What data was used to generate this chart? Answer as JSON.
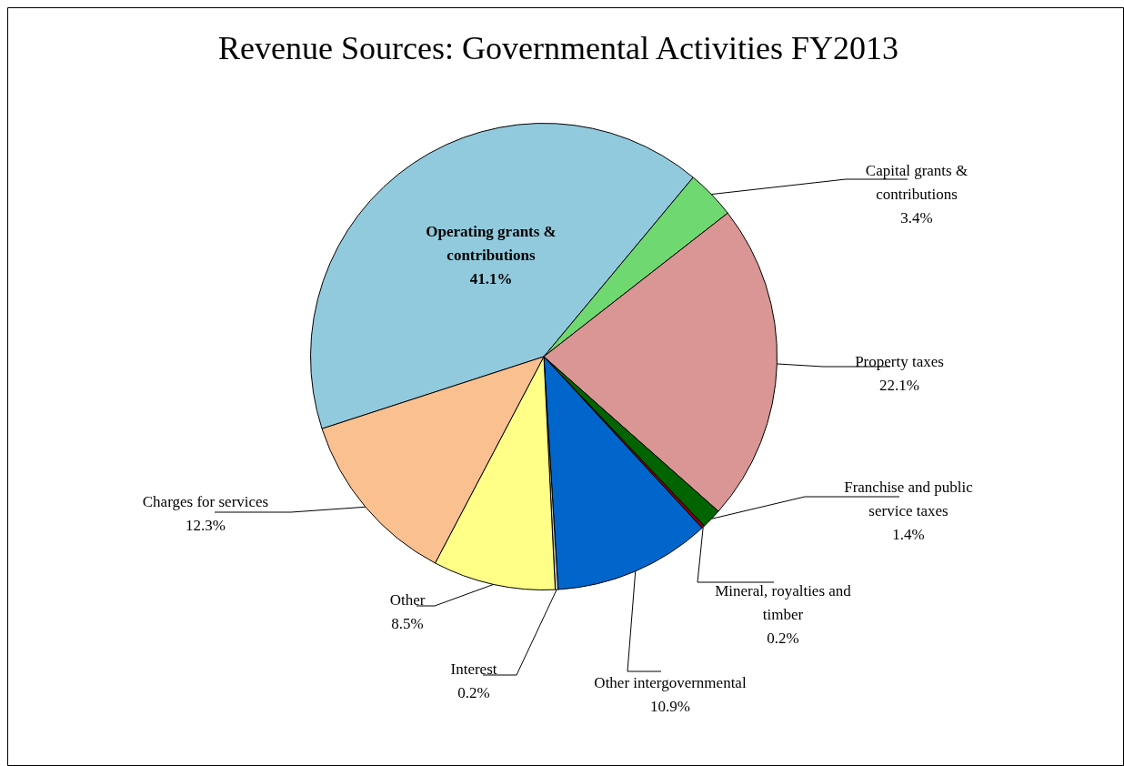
{
  "chart_data": {
    "type": "pie",
    "title": "Revenue Sources: Governmental Activities FY2013",
    "categories": [
      "Operating grants & contributions",
      "Capital grants & contributions",
      "Property taxes",
      "Franchise and public service taxes",
      "Mineral, royalties and timber",
      "Other intergovernmental",
      "Interest",
      "Other",
      "Charges for services"
    ],
    "values": [
      41.1,
      3.4,
      22.1,
      1.4,
      0.2,
      10.9,
      0.2,
      8.5,
      12.3
    ],
    "colors": [
      "#92cadd",
      "#70d870",
      "#d99694",
      "#006400",
      "#8b0000",
      "#0066cc",
      "#c0c0c0",
      "#ffff88",
      "#fac090"
    ],
    "value_labels": [
      "41.1%",
      "3.4%",
      "22.1%",
      "1.4%",
      "0.2%",
      "10.9%",
      "0.2%",
      "8.5%",
      "12.3%"
    ],
    "legend": false
  }
}
